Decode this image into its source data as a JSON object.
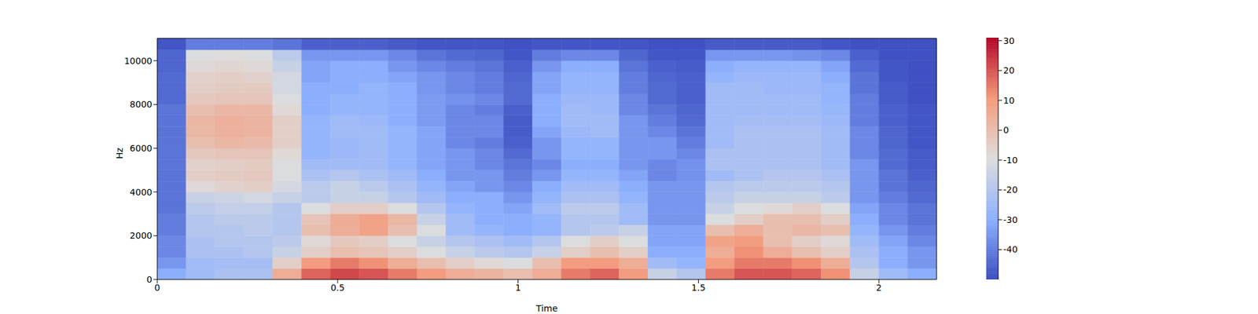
{
  "chart_data": {
    "type": "heatmap",
    "x_label": "Time",
    "y_label": "Hz",
    "xlim": [
      0,
      2.16
    ],
    "xticks": [
      0,
      0.5,
      1,
      1.5,
      2
    ],
    "ylim": [
      0,
      11025
    ],
    "yticks": [
      0,
      2000,
      4000,
      6000,
      8000,
      10000
    ],
    "time_edges": [
      0,
      0.08,
      0.16,
      0.24,
      0.32,
      0.4,
      0.48,
      0.56,
      0.64,
      0.72,
      0.8,
      0.88,
      0.96,
      1.04,
      1.12,
      1.2,
      1.28,
      1.36,
      1.44,
      1.52,
      1.6,
      1.68,
      1.76,
      1.84,
      1.92,
      2.0,
      2.08,
      2.16
    ],
    "freq_edges": [
      0,
      500,
      1000,
      1500,
      2000,
      2500,
      3000,
      3500,
      4000,
      4500,
      5000,
      5500,
      6000,
      6500,
      7000,
      7500,
      8000,
      8500,
      9000,
      9500,
      10000,
      10500,
      11025
    ],
    "cells": [
      [
        -30,
        -35,
        -38,
        -38,
        -40,
        -40,
        -42,
        -42,
        -42,
        -42,
        -42,
        -42,
        -42,
        -42,
        -42,
        -42,
        -44,
        -44,
        -44,
        -45,
        -45,
        -48
      ],
      [
        -25,
        -25,
        -22,
        -22,
        -20,
        -20,
        -18,
        -15,
        -8,
        -5,
        -6,
        -3,
        0,
        2,
        2,
        0,
        -3,
        -5,
        -6,
        -8,
        -10,
        -40
      ],
      [
        -22,
        -24,
        -22,
        -20,
        -20,
        -18,
        -16,
        -14,
        -6,
        -4,
        -5,
        -2,
        2,
        4,
        4,
        2,
        -2,
        -4,
        -5,
        -7,
        -9,
        -40
      ],
      [
        -22,
        -24,
        -20,
        -20,
        -18,
        -18,
        -16,
        -12,
        -5,
        -3,
        -4,
        -2,
        1,
        3,
        3,
        2,
        -2,
        -4,
        -6,
        -8,
        -10,
        -40
      ],
      [
        5,
        -5,
        -15,
        -18,
        -20,
        -20,
        -20,
        -15,
        -12,
        -10,
        -10,
        -8,
        -5,
        -5,
        -5,
        -8,
        -10,
        -12,
        -12,
        -15,
        -18,
        -42
      ],
      [
        18,
        10,
        -5,
        -8,
        0,
        -2,
        -10,
        -18,
        -18,
        -22,
        -25,
        -28,
        -28,
        -28,
        -28,
        -30,
        -30,
        -30,
        -32,
        -32,
        -35,
        -46
      ],
      [
        22,
        15,
        0,
        -3,
        5,
        5,
        -5,
        -15,
        -15,
        -20,
        -25,
        -26,
        -26,
        -25,
        -25,
        -28,
        -28,
        -30,
        -30,
        -30,
        -35,
        -46
      ],
      [
        20,
        12,
        -2,
        -5,
        8,
        8,
        -5,
        -15,
        -18,
        -22,
        -25,
        -25,
        -25,
        -25,
        -26,
        -28,
        -28,
        -28,
        -30,
        -30,
        -35,
        -46
      ],
      [
        15,
        5,
        -5,
        -10,
        0,
        2,
        -10,
        -20,
        -22,
        -25,
        -28,
        -28,
        -28,
        -28,
        -30,
        -30,
        -30,
        -30,
        -32,
        -35,
        -38,
        -47
      ],
      [
        10,
        0,
        -10,
        -15,
        -10,
        -15,
        -20,
        -25,
        -28,
        -30,
        -32,
        -32,
        -32,
        -32,
        -34,
        -34,
        -34,
        -35,
        -35,
        -38,
        -42,
        -48
      ],
      [
        5,
        -5,
        -15,
        -20,
        -25,
        -25,
        -28,
        -30,
        -32,
        -35,
        -35,
        -35,
        -38,
        -38,
        -38,
        -38,
        -36,
        -38,
        -38,
        -40,
        -44,
        -48
      ],
      [
        3,
        -8,
        -18,
        -22,
        -28,
        -30,
        -30,
        -30,
        -35,
        -35,
        -38,
        -38,
        -40,
        -38,
        -38,
        -40,
        -38,
        -40,
        -40,
        -42,
        -45,
        -48
      ],
      [
        0,
        -10,
        -20,
        -25,
        -30,
        -30,
        -32,
        -35,
        -38,
        -40,
        -42,
        -44,
        -46,
        -47,
        -47,
        -46,
        -44,
        -44,
        -45,
        -46,
        -48,
        -49
      ],
      [
        5,
        0,
        -15,
        -20,
        -28,
        -28,
        -25,
        -28,
        -30,
        -35,
        -38,
        -35,
        -35,
        -32,
        -30,
        -30,
        -30,
        -32,
        -32,
        -35,
        -40,
        -48
      ],
      [
        15,
        10,
        -5,
        -10,
        -20,
        -20,
        -18,
        -22,
        -25,
        -28,
        -30,
        -28,
        -28,
        -26,
        -25,
        -25,
        -26,
        -28,
        -28,
        -30,
        -38,
        -48
      ],
      [
        18,
        10,
        0,
        -5,
        -18,
        -20,
        -18,
        -22,
        -25,
        -28,
        -30,
        -28,
        -28,
        -25,
        -25,
        -26,
        -26,
        -28,
        -28,
        -30,
        -38,
        -48
      ],
      [
        10,
        5,
        -5,
        -10,
        -15,
        -25,
        -25,
        -28,
        -30,
        -32,
        -35,
        -35,
        -35,
        -35,
        -35,
        -38,
        -38,
        -40,
        -40,
        -42,
        -45,
        -48
      ],
      [
        -15,
        -25,
        -30,
        -32,
        -32,
        -35,
        -35,
        -35,
        -35,
        -38,
        -38,
        -35,
        -35,
        -38,
        -40,
        -42,
        -44,
        -44,
        -45,
        -46,
        -48,
        -49
      ],
      [
        -20,
        -28,
        -30,
        -32,
        -32,
        -35,
        -35,
        -35,
        -35,
        -36,
        -36,
        -38,
        -40,
        -42,
        -44,
        -45,
        -46,
        -46,
        -46,
        -47,
        -48,
        -49
      ],
      [
        15,
        10,
        5,
        8,
        0,
        -10,
        -15,
        -18,
        -20,
        -25,
        -22,
        -22,
        -25,
        -25,
        -25,
        -25,
        -25,
        -25,
        -28,
        -30,
        -35,
        -47
      ],
      [
        20,
        15,
        12,
        10,
        5,
        -5,
        -10,
        -15,
        -18,
        -22,
        -22,
        -22,
        -22,
        -22,
        -24,
        -25,
        -25,
        -25,
        -26,
        -28,
        -35,
        -47
      ],
      [
        20,
        15,
        5,
        0,
        0,
        0,
        -8,
        -15,
        -18,
        -20,
        -22,
        -22,
        -22,
        -22,
        -24,
        -25,
        -25,
        -26,
        -26,
        -28,
        -35,
        -47
      ],
      [
        18,
        12,
        0,
        -5,
        2,
        0,
        -5,
        -15,
        -18,
        -20,
        -22,
        -22,
        -22,
        -22,
        -24,
        -25,
        -25,
        -26,
        -26,
        -28,
        -36,
        -47
      ],
      [
        12,
        5,
        -5,
        -8,
        0,
        -5,
        -10,
        -18,
        -20,
        -22,
        -25,
        -25,
        -25,
        -25,
        -26,
        -27,
        -28,
        -28,
        -30,
        -32,
        -38,
        -48
      ],
      [
        -15,
        -20,
        -22,
        -25,
        -28,
        -30,
        -32,
        -35,
        -35,
        -35,
        -35,
        -38,
        -38,
        -38,
        -40,
        -40,
        -40,
        -42,
        -42,
        -44,
        -46,
        -49
      ],
      [
        -25,
        -30,
        -30,
        -32,
        -35,
        -38,
        -38,
        -40,
        -42,
        -42,
        -44,
        -44,
        -45,
        -45,
        -46,
        -46,
        -47,
        -47,
        -48,
        -48,
        -49,
        -49
      ],
      [
        -30,
        -35,
        -35,
        -38,
        -40,
        -42,
        -42,
        -44,
        -45,
        -46,
        -47,
        -47,
        -48,
        -48,
        -48,
        -48,
        -49,
        -49,
        -49,
        -49,
        -49,
        -49
      ]
    ],
    "colorbar": {
      "range": [
        -50,
        31
      ],
      "ticks": [
        -40,
        -30,
        -20,
        -10,
        0,
        10,
        20,
        30
      ]
    }
  }
}
